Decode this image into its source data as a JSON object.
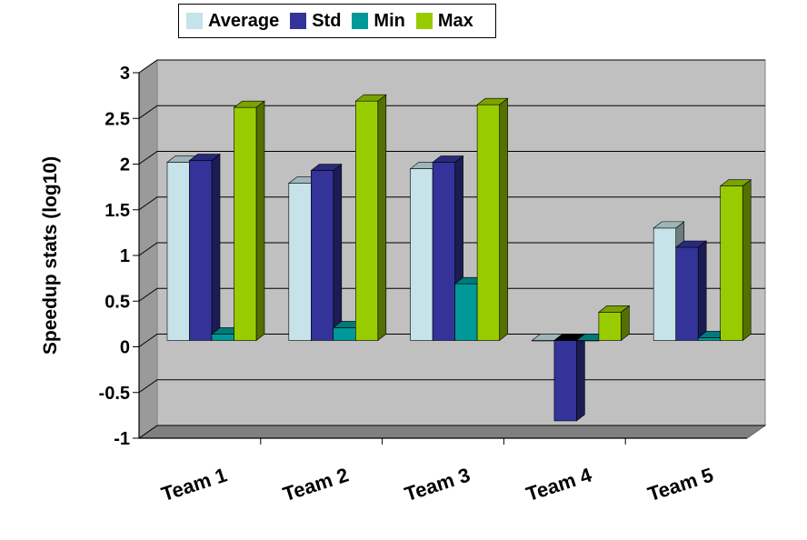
{
  "chart_data": {
    "type": "bar",
    "title": "",
    "xlabel": "",
    "ylabel": "Speedup stats (log10)",
    "categories": [
      "Team 1",
      "Team 2",
      "Team 3",
      "Team 4",
      "Team 5"
    ],
    "ylim": [
      -1,
      3
    ],
    "yticks": [
      "3",
      "2.5",
      "2",
      "1.5",
      "1",
      "0.5",
      "0",
      "-0.5",
      "-1"
    ],
    "grid": true,
    "legend_position": "top",
    "series": [
      {
        "name": "Average",
        "color": "#c5e3e8",
        "values": [
          1.95,
          1.72,
          1.88,
          0.0,
          1.23
        ]
      },
      {
        "name": "Std",
        "color": "#333399",
        "values": [
          1.97,
          1.86,
          1.95,
          -0.88,
          1.02
        ]
      },
      {
        "name": "Min",
        "color": "#009999",
        "values": [
          0.07,
          0.14,
          0.62,
          0.0,
          0.03
        ]
      },
      {
        "name": "Max",
        "color": "#99cc00",
        "values": [
          2.55,
          2.62,
          2.58,
          0.31,
          1.69
        ]
      }
    ]
  }
}
